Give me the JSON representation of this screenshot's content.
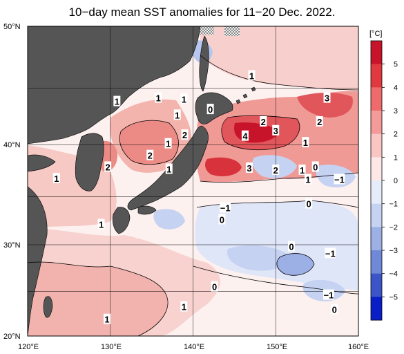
{
  "title": "10−day mean SST anomalies for 11−20 Dec. 2022.",
  "colorbar": {
    "unit": "[°C]",
    "ticks": [
      "5",
      "4",
      "3",
      "2",
      "1",
      "0",
      "−1",
      "−2",
      "−3",
      "−4",
      "−5"
    ],
    "colors": [
      "#c8142a",
      "#e03a40",
      "#ef6a6a",
      "#f49a98",
      "#f9c6c4",
      "#fde8e6",
      "#e6ecfa",
      "#c6d2f2",
      "#9db0e6",
      "#6f88d8",
      "#3b55c8",
      "#0a1ec8"
    ]
  },
  "map": {
    "lon_labels": [
      "120°E",
      "130°E",
      "140°E",
      "150°E",
      "160°E"
    ],
    "lat_labels": [
      "50°N",
      "40°N",
      "30°N",
      "20°N"
    ],
    "lon_range": [
      120,
      160
    ],
    "lat_range": [
      20,
      50
    ],
    "land_color": "#555555",
    "grid": true,
    "contour_labels": [
      {
        "text": "1",
        "lon": 147.1,
        "lat": 46.0
      },
      {
        "text": "0",
        "lon": 142.1,
        "lat": 43.1
      },
      {
        "text": "1",
        "lon": 135.8,
        "lat": 44.1
      },
      {
        "text": "1",
        "lon": 138.9,
        "lat": 44.0
      },
      {
        "text": "1",
        "lon": 130.8,
        "lat": 43.8
      },
      {
        "text": "1",
        "lon": 138.1,
        "lat": 42.6
      },
      {
        "text": "2",
        "lon": 139.0,
        "lat": 40.8
      },
      {
        "text": "1",
        "lon": 137.0,
        "lat": 40.0
      },
      {
        "text": "2",
        "lon": 134.8,
        "lat": 38.9
      },
      {
        "text": "1",
        "lon": 137.1,
        "lat": 37.6
      },
      {
        "text": "2",
        "lon": 129.7,
        "lat": 37.8
      },
      {
        "text": "1",
        "lon": 123.5,
        "lat": 36.7
      },
      {
        "text": "1",
        "lon": 128.9,
        "lat": 32.1
      },
      {
        "text": "3",
        "lon": 156.2,
        "lat": 44.1
      },
      {
        "text": "2",
        "lon": 148.5,
        "lat": 42.0
      },
      {
        "text": "2",
        "lon": 155.3,
        "lat": 42.0
      },
      {
        "text": "3",
        "lon": 150.0,
        "lat": 41.2
      },
      {
        "text": "4",
        "lon": 146.3,
        "lat": 40.7
      },
      {
        "text": "1",
        "lon": 153.6,
        "lat": 40.1
      },
      {
        "text": "3",
        "lon": 146.8,
        "lat": 37.7
      },
      {
        "text": "2",
        "lon": 150.0,
        "lat": 37.5
      },
      {
        "text": "1",
        "lon": 153.2,
        "lat": 37.5
      },
      {
        "text": "0",
        "lon": 154.8,
        "lat": 37.8
      },
      {
        "text": "1",
        "lon": 153.9,
        "lat": 36.6
      },
      {
        "text": "−1",
        "lon": 157.7,
        "lat": 36.6
      },
      {
        "text": "0",
        "lon": 154.0,
        "lat": 34.2
      },
      {
        "text": "−1",
        "lon": 143.9,
        "lat": 33.8
      },
      {
        "text": "0",
        "lon": 143.5,
        "lat": 32.6
      },
      {
        "text": "0",
        "lon": 151.9,
        "lat": 29.8
      },
      {
        "text": "−1",
        "lon": 156.6,
        "lat": 29.1
      },
      {
        "text": "0",
        "lon": 142.6,
        "lat": 25.5
      },
      {
        "text": "−1",
        "lon": 156.4,
        "lat": 24.6
      },
      {
        "text": "1",
        "lon": 138.9,
        "lat": 23.3
      },
      {
        "text": "0",
        "lon": 157.1,
        "lat": 23.0
      },
      {
        "text": "1",
        "lon": 129.6,
        "lat": 21.9
      }
    ]
  }
}
